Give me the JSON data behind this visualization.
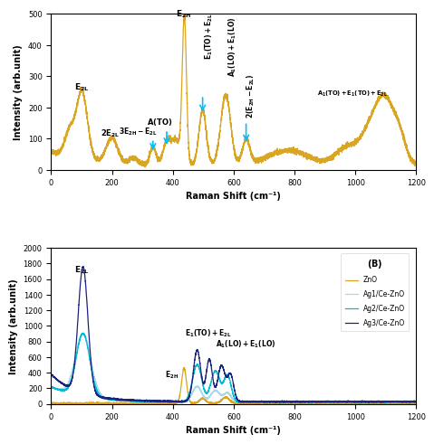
{
  "panel_A": {
    "xlabel": "Raman Shift (cm⁻¹)",
    "ylabel": "Intensity (arb.unit)",
    "ylim": [
      0,
      500
    ],
    "xlim": [
      0,
      1200
    ],
    "yticks": [
      0,
      100,
      200,
      300,
      400,
      500
    ],
    "xticks": [
      0,
      200,
      400,
      600,
      800,
      1000,
      1200
    ],
    "line_color": "#DAA520"
  },
  "panel_B": {
    "xlabel": "Raman Shift (cm⁻¹)",
    "ylabel": "Intensity (arb.unit)",
    "ylim": [
      0,
      2000
    ],
    "xlim": [
      0,
      1200
    ],
    "yticks": [
      0,
      200,
      400,
      600,
      800,
      1000,
      1200,
      1400,
      1600,
      1800,
      2000
    ],
    "xticks": [
      0,
      200,
      400,
      600,
      800,
      1000,
      1200
    ],
    "series": [
      {
        "label": "ZnO",
        "color": "#DAA520"
      },
      {
        "label": "Ag1/Ce-ZnO",
        "color": "#A8D8EA"
      },
      {
        "label": "Ag2/Ce-ZnO",
        "color": "#00BCD4"
      },
      {
        "label": "Ag3/Ce-ZnO",
        "color": "#1A237E"
      }
    ]
  }
}
